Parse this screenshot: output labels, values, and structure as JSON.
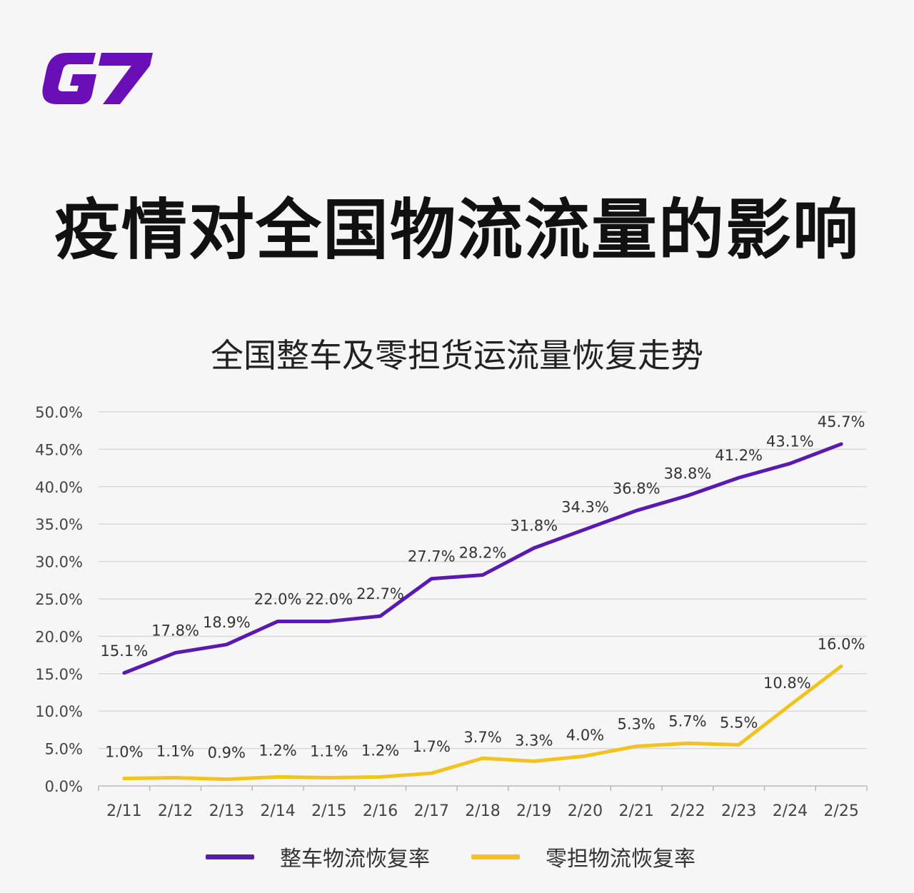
{
  "brand": {
    "logo_text": "G7",
    "logo_color": "#6a0fb8"
  },
  "title": "疫情对全国物流流量的影响",
  "chart_data": {
    "type": "line",
    "title": "全国整车及零担货运流量恢复走势",
    "categories": [
      "2/11",
      "2/12",
      "2/13",
      "2/14",
      "2/15",
      "2/16",
      "2/17",
      "2/18",
      "2/19",
      "2/20",
      "2/21",
      "2/22",
      "2/23",
      "2/24",
      "2/25"
    ],
    "ylim": [
      0,
      50
    ],
    "yticks": [
      "0.0%",
      "5.0%",
      "10.0%",
      "15.0%",
      "20.0%",
      "25.0%",
      "30.0%",
      "35.0%",
      "40.0%",
      "45.0%",
      "50.0%"
    ],
    "grid": true,
    "legend_position": "bottom",
    "series": [
      {
        "name": "整车物流恢复率",
        "color": "#5a1ab0",
        "values": [
          15.1,
          17.8,
          18.9,
          22.0,
          22.0,
          22.7,
          27.7,
          28.2,
          31.8,
          34.3,
          36.8,
          38.8,
          41.2,
          43.1,
          45.7
        ],
        "labels": [
          "15.1%",
          "17.8%",
          "18.9%",
          "22.0%",
          "22.0%",
          "22.7%",
          "27.7%",
          "28.2%",
          "31.8%",
          "34.3%",
          "36.8%",
          "38.8%",
          "41.2%",
          "43.1%",
          "45.7%"
        ]
      },
      {
        "name": "零担物流恢复率",
        "color": "#f2c21f",
        "values": [
          1.0,
          1.1,
          0.9,
          1.2,
          1.1,
          1.2,
          1.7,
          3.7,
          3.3,
          4.0,
          5.3,
          5.7,
          5.5,
          10.8,
          16.0
        ],
        "labels": [
          "1.0%",
          "1.1%",
          "0.9%",
          "1.2%",
          "1.1%",
          "1.2%",
          "1.7%",
          "3.7%",
          "3.3%",
          "4.0%",
          "5.3%",
          "5.7%",
          "5.5%",
          "10.8%",
          "16.0%"
        ]
      }
    ]
  }
}
